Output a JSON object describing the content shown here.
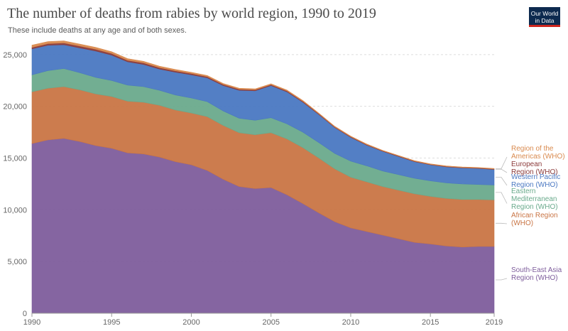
{
  "header": {
    "title": "The number of deaths from rabies by world region, 1990 to 2019",
    "subtitle": "These include deaths at any age and of both sexes."
  },
  "logo": {
    "line1": "Our World",
    "line2": "in Data"
  },
  "colors": {
    "south_east_asia": "#7e5d9c",
    "african": "#c97545",
    "eastern_mediterranean": "#6aaa8c",
    "western_pacific": "#4a78c2",
    "european": "#8b3a3a",
    "americas": "#d98a4e",
    "grid": "#dddddd",
    "tick": "#666666"
  },
  "chart_data": {
    "type": "area",
    "stacked": true,
    "title": "The number of deaths from rabies by world region, 1990 to 2019",
    "xlabel": "",
    "ylabel": "",
    "x": [
      1990,
      1991,
      1992,
      1993,
      1994,
      1995,
      1996,
      1997,
      1998,
      1999,
      2000,
      2001,
      2002,
      2003,
      2004,
      2005,
      2006,
      2007,
      2008,
      2009,
      2010,
      2011,
      2012,
      2013,
      2014,
      2015,
      2016,
      2017,
      2018,
      2019
    ],
    "xticks": [
      1990,
      1995,
      2000,
      2005,
      2010,
      2015,
      2019
    ],
    "xtick_labels": [
      "1990",
      "1995",
      "2000",
      "2005",
      "2010",
      "2015",
      "2019"
    ],
    "ylim": [
      0,
      26500
    ],
    "yticks": [
      0,
      5000,
      10000,
      15000,
      20000,
      25000
    ],
    "ytick_labels": [
      "0",
      "5,000",
      "10,000",
      "15,000",
      "20,000",
      "25,000"
    ],
    "grid": true,
    "series": [
      {
        "key": "south_east_asia",
        "name": "South-East Asia Region (WHO)",
        "label_lines": [
          "South-East Asia",
          "Region (WHO)"
        ],
        "values": [
          16400,
          16750,
          16900,
          16600,
          16200,
          15950,
          15500,
          15400,
          15100,
          14650,
          14350,
          13800,
          12950,
          12250,
          12050,
          12150,
          11450,
          10600,
          9700,
          8850,
          8250,
          7900,
          7550,
          7200,
          6850,
          6700,
          6500,
          6400,
          6450,
          6450
        ]
      },
      {
        "key": "african",
        "name": "African Region (WHO)",
        "label_lines": [
          "African Region",
          "(WHO)"
        ],
        "values": [
          5000,
          5000,
          5000,
          5000,
          5000,
          5000,
          5000,
          5000,
          5000,
          5000,
          5000,
          5200,
          5200,
          5200,
          5200,
          5300,
          5400,
          5400,
          5300,
          5100,
          4900,
          4800,
          4700,
          4700,
          4700,
          4600,
          4600,
          4600,
          4550,
          4500
        ]
      },
      {
        "key": "eastern_mediterranean",
        "name": "Eastern Mediterranean Region (WHO)",
        "label_lines": [
          "Eastern",
          "Mediterranean",
          "Region (WHO)"
        ],
        "values": [
          1650,
          1700,
          1750,
          1650,
          1600,
          1550,
          1550,
          1500,
          1450,
          1450,
          1450,
          1450,
          1400,
          1400,
          1400,
          1450,
          1450,
          1500,
          1500,
          1500,
          1550,
          1550,
          1500,
          1500,
          1500,
          1500,
          1500,
          1500,
          1450,
          1450
        ]
      },
      {
        "key": "western_pacific",
        "name": "Western Pacific Region (WHO)",
        "label_lines": [
          "Western Pacific",
          "Region (WHO)"
        ],
        "values": [
          2500,
          2450,
          2300,
          2400,
          2550,
          2450,
          2250,
          2150,
          2050,
          2200,
          2250,
          2300,
          2450,
          2700,
          2850,
          3100,
          3100,
          2900,
          2700,
          2500,
          2300,
          2000,
          1900,
          1750,
          1600,
          1550,
          1550,
          1550,
          1550,
          1500
        ]
      },
      {
        "key": "european",
        "name": "European Region (WHO)",
        "label_lines": [
          "European",
          "Region (WHO)"
        ],
        "values": [
          150,
          160,
          180,
          180,
          170,
          160,
          150,
          150,
          140,
          130,
          120,
          120,
          110,
          100,
          100,
          90,
          90,
          80,
          70,
          60,
          60,
          50,
          50,
          50,
          50,
          40,
          40,
          40,
          40,
          40
        ]
      },
      {
        "key": "americas",
        "name": "Region of the Americas (WHO)",
        "label_lines": [
          "Region of the",
          "Americas (WHO)"
        ],
        "values": [
          210,
          200,
          190,
          190,
          180,
          170,
          160,
          150,
          140,
          130,
          120,
          110,
          100,
          100,
          90,
          90,
          80,
          80,
          70,
          60,
          60,
          60,
          50,
          50,
          50,
          50,
          50,
          50,
          50,
          50
        ]
      }
    ]
  }
}
